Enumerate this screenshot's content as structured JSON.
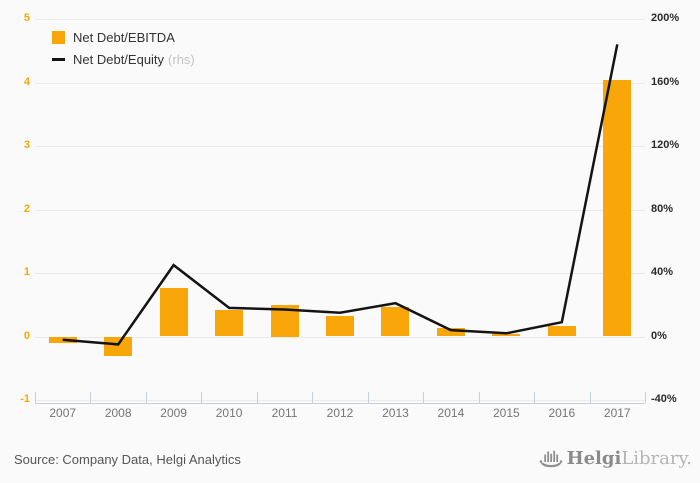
{
  "legend": {
    "items": [
      {
        "label": "Net Debt/EBITDA",
        "suffix": "",
        "swatch": "bar"
      },
      {
        "label": "Net Debt/Equity",
        "suffix": "(rhs)",
        "swatch": "line"
      }
    ]
  },
  "chart_data": {
    "type": "bar",
    "title": "",
    "categories": [
      "2007",
      "2008",
      "2009",
      "2010",
      "2011",
      "2012",
      "2013",
      "2014",
      "2015",
      "2016",
      "2017"
    ],
    "series": [
      {
        "name": "Net Debt/EBITDA",
        "type": "bar",
        "axis": "left",
        "color": "#f9a60a",
        "values": [
          -0.1,
          -0.31,
          0.76,
          0.42,
          0.5,
          0.32,
          0.47,
          0.13,
          0.04,
          0.17,
          4.04
        ]
      },
      {
        "name": "Net Debt/Equity (rhs)",
        "type": "line",
        "axis": "right",
        "color": "#141414",
        "values": [
          -2,
          -5,
          45,
          18,
          17,
          15,
          21,
          4,
          2,
          9,
          184
        ]
      }
    ],
    "left_axis": {
      "min": -1,
      "max": 5,
      "ticks": [
        5,
        4,
        3,
        2,
        1,
        0,
        -1
      ],
      "label_color": "#f9a60a"
    },
    "right_axis": {
      "min": -40,
      "max": 200,
      "ticks": [
        200,
        160,
        120,
        80,
        40,
        0,
        -40
      ],
      "tick_labels": [
        "200%",
        "160%",
        "120%",
        "80%",
        "40%",
        "0%",
        "-40%"
      ],
      "label_color": "#2b2b2b"
    },
    "grid": true,
    "legend_position": "top-left"
  },
  "colors": {
    "accent_orange": "#f9a60a",
    "line_black": "#141414",
    "background": "#fafafa",
    "gridline": "#eaeaea",
    "axis_line": "#c9cede"
  },
  "footer": {
    "source": "Source: Company Data, Helgi Analytics",
    "logo": {
      "brand_bold": "Helgi",
      "brand_light": "Library."
    }
  }
}
